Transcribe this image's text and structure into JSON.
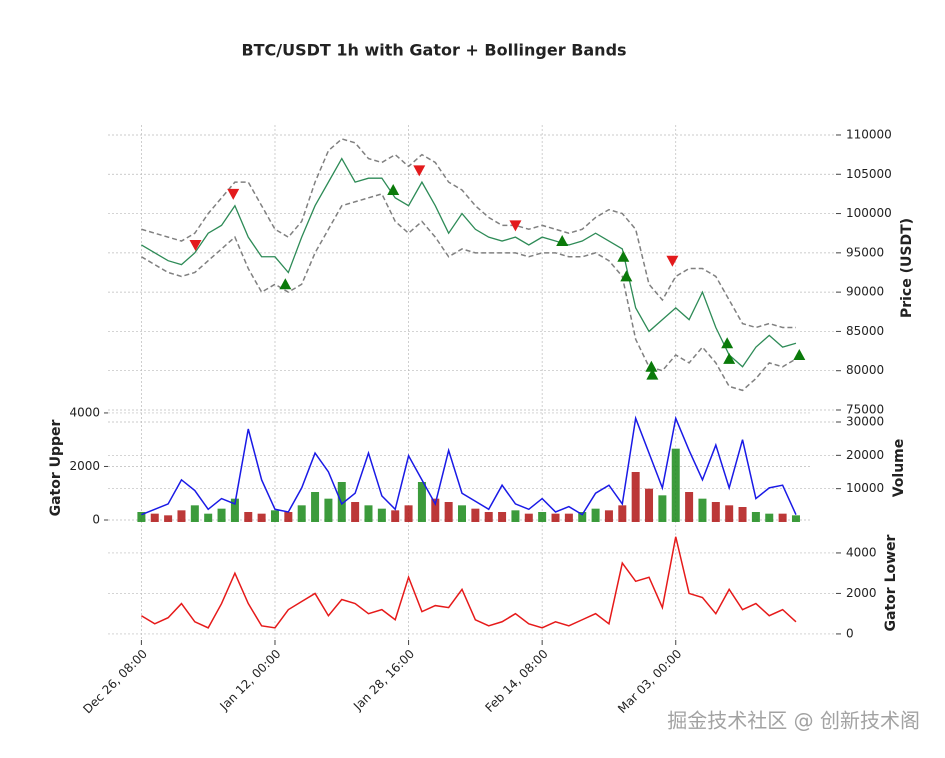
{
  "chart_data": {
    "type": "line",
    "title": "BTC/USDT 1h with Gator + Bollinger Bands",
    "x": [
      0,
      40,
      80,
      120,
      160,
      200,
      240,
      280,
      320,
      360,
      400,
      440,
      480,
      520,
      560,
      600,
      640,
      680,
      720,
      760,
      800,
      840,
      880,
      920,
      960,
      1000,
      1040,
      1080,
      1120,
      1160,
      1200,
      1240,
      1280,
      1320,
      1360,
      1400,
      1440,
      1480,
      1520,
      1560,
      1600,
      1640,
      1680,
      1720,
      1760,
      1800,
      1840,
      1880,
      1920,
      1960
    ],
    "xlim": [
      -100,
      2008
    ],
    "xticks": [
      {
        "value": 0,
        "label": "Dec 26, 08:00"
      },
      {
        "value": 400,
        "label": "Jan 12, 00:00"
      },
      {
        "value": 800,
        "label": "Jan 28, 16:00"
      },
      {
        "value": 1200,
        "label": "Feb 14, 08:00"
      },
      {
        "value": 1600,
        "label": "Mar 03, 00:00"
      }
    ],
    "grid": true,
    "price": {
      "ylabel": "Price (USDT)",
      "ylim": [
        75000,
        111270
      ],
      "yticks": [
        75000,
        80000,
        85000,
        90000,
        95000,
        100000,
        105000,
        110000
      ],
      "close": {
        "color": "#2e8b57",
        "values": [
          96000,
          95000,
          94000,
          93500,
          95000,
          97500,
          98500,
          101000,
          97000,
          94500,
          94500,
          92500,
          97000,
          101000,
          104000,
          107000,
          104000,
          104500,
          104500,
          102000,
          101000,
          104000,
          101000,
          97500,
          100000,
          98000,
          97000,
          96500,
          97000,
          96000,
          97000,
          96500,
          96000,
          96500,
          97500,
          96500,
          95500,
          88000,
          85000,
          86500,
          88000,
          86500,
          90000,
          85500,
          82000,
          80500,
          83000,
          84500,
          83000,
          83500
        ]
      },
      "upper": {
        "color": "#808080",
        "values": [
          98000,
          97500,
          97000,
          96500,
          97500,
          100000,
          102000,
          104000,
          104000,
          101000,
          98000,
          97000,
          99000,
          104000,
          108000,
          109500,
          109000,
          107000,
          106500,
          107500,
          106000,
          107500,
          106500,
          104000,
          103000,
          101000,
          99500,
          98500,
          98500,
          98000,
          98500,
          98000,
          97500,
          98000,
          99500,
          100500,
          100000,
          98000,
          91000,
          89000,
          92000,
          93000,
          93000,
          92000,
          89000,
          86000,
          85500,
          86000,
          85500,
          85500
        ]
      },
      "lower": {
        "color": "#808080",
        "values": [
          94500,
          93500,
          92500,
          92000,
          92500,
          94000,
          95500,
          97000,
          93000,
          90000,
          91000,
          90000,
          91000,
          95000,
          98000,
          101000,
          101500,
          102000,
          102500,
          99000,
          97500,
          99000,
          97000,
          94500,
          95500,
          95000,
          95000,
          95000,
          95000,
          94500,
          95000,
          95000,
          94500,
          94500,
          95000,
          94000,
          92000,
          84000,
          80500,
          80000,
          82000,
          81000,
          83000,
          81000,
          78000,
          77500,
          79000,
          81000,
          80500,
          81500
        ]
      },
      "sells": {
        "color": "#e31a1c",
        "x": [
          162,
          275,
          832,
          1120,
          1590
        ],
        "values": [
          96000,
          102500,
          105500,
          98500,
          94000
        ]
      },
      "buys": {
        "color": "#0a7a0a",
        "x": [
          431,
          754,
          1260,
          1443,
          1452,
          1527,
          1530,
          1754,
          1760,
          1970
        ],
        "values": [
          91000,
          103000,
          96500,
          94500,
          92000,
          80500,
          79500,
          83500,
          81500,
          82000
        ]
      }
    },
    "volume": {
      "ylabel": "Volume",
      "ylim": [
        0,
        33600
      ],
      "yticks": [
        10000,
        20000,
        30000
      ],
      "up_color": "#1a8a1a",
      "down_color": "#b01515",
      "values": [
        3000,
        2500,
        2000,
        3500,
        5000,
        2500,
        4000,
        7000,
        3000,
        2500,
        3500,
        3000,
        5000,
        9000,
        7000,
        12000,
        6000,
        5000,
        4000,
        3500,
        5000,
        12000,
        7000,
        6000,
        5000,
        4000,
        3000,
        3000,
        3500,
        2500,
        3000,
        2500,
        2500,
        3000,
        4000,
        3500,
        5000,
        15000,
        10000,
        8000,
        22000,
        9000,
        7000,
        6000,
        5000,
        4500,
        3000,
        2500,
        2500,
        2000
      ]
    },
    "gator_upper": {
      "ylabel": "Gator Upper",
      "ylim": [
        -75,
        4110
      ],
      "yticks": [
        0,
        2000,
        4000
      ],
      "color": "#1a1ae6",
      "values": [
        200,
        400,
        600,
        1500,
        1100,
        400,
        800,
        600,
        3400,
        1500,
        400,
        300,
        1200,
        2500,
        1800,
        600,
        1000,
        2500,
        900,
        400,
        2400,
        1500,
        600,
        2600,
        1000,
        700,
        400,
        1300,
        600,
        400,
        800,
        300,
        500,
        200,
        1000,
        1300,
        600,
        3800,
        2500,
        1200,
        3800,
        2600,
        1500,
        2800,
        1200,
        3000,
        800,
        1200,
        1300,
        200
      ]
    },
    "gator_lower": {
      "ylabel": "Gator Lower",
      "ylim": [
        -300,
        5380
      ],
      "yticks": [
        0,
        2000,
        4000
      ],
      "color": "#e61a1a",
      "values": [
        900,
        500,
        800,
        1500,
        600,
        300,
        1500,
        3000,
        1500,
        400,
        300,
        1200,
        1600,
        2000,
        900,
        1700,
        1500,
        1000,
        1200,
        700,
        2800,
        1100,
        1400,
        1300,
        2200,
        700,
        400,
        600,
        1000,
        500,
        300,
        600,
        400,
        700,
        1000,
        500,
        3500,
        2600,
        2800,
        1300,
        4800,
        2000,
        1800,
        1000,
        2200,
        1200,
        1500,
        900,
        1200,
        600
      ]
    },
    "watermark": "掘金技术社区 @ 创新技术阁"
  }
}
